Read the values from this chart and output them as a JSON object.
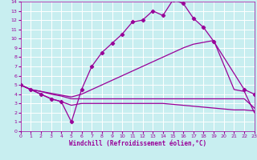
{
  "xlabel": "Windchill (Refroidissement éolien,°C)",
  "bg_color": "#c8eef0",
  "grid_color": "#ffffff",
  "line_color": "#990099",
  "xlim": [
    0,
    23
  ],
  "ylim": [
    0,
    14
  ],
  "xticks": [
    0,
    1,
    2,
    3,
    4,
    5,
    6,
    7,
    8,
    9,
    10,
    11,
    12,
    13,
    14,
    15,
    16,
    17,
    18,
    19,
    20,
    21,
    22,
    23
  ],
  "yticks": [
    0,
    1,
    2,
    3,
    4,
    5,
    6,
    7,
    8,
    9,
    10,
    11,
    12,
    13,
    14
  ],
  "line1_x": [
    0,
    1,
    2,
    3,
    4,
    5,
    6,
    7,
    8,
    9,
    10,
    11,
    12,
    13,
    14,
    15,
    16,
    17,
    18,
    19,
    22,
    23
  ],
  "line1_y": [
    5.0,
    4.5,
    4.0,
    3.5,
    3.2,
    1.0,
    4.5,
    7.0,
    8.5,
    9.5,
    10.5,
    11.8,
    12.0,
    13.0,
    12.5,
    14.2,
    13.8,
    12.2,
    11.2,
    9.7,
    4.5,
    4.0
  ],
  "line2_x": [
    0,
    1,
    2,
    3,
    4,
    5,
    6,
    7,
    8,
    9,
    10,
    11,
    12,
    13,
    14,
    15,
    16,
    17,
    18,
    19,
    21,
    22,
    23
  ],
  "line2_y": [
    5.0,
    4.5,
    4.3,
    4.1,
    3.9,
    3.7,
    4.0,
    4.5,
    5.0,
    5.5,
    6.0,
    6.5,
    7.0,
    7.5,
    8.0,
    8.5,
    9.0,
    9.4,
    9.6,
    9.8,
    4.5,
    4.3,
    2.0
  ],
  "line3_x": [
    0,
    1,
    2,
    3,
    4,
    5,
    6,
    7,
    8,
    9,
    10,
    11,
    12,
    13,
    14,
    15,
    16,
    17,
    18,
    19,
    20,
    21,
    22,
    23
  ],
  "line3_y": [
    5.0,
    4.5,
    4.0,
    3.5,
    3.2,
    2.8,
    3.0,
    3.0,
    3.0,
    3.0,
    3.0,
    3.0,
    3.0,
    3.0,
    3.0,
    2.9,
    2.8,
    2.7,
    2.6,
    2.5,
    2.4,
    2.3,
    2.3,
    2.2
  ],
  "line4_x": [
    0,
    1,
    2,
    3,
    4,
    5,
    6,
    7,
    8,
    9,
    10,
    11,
    12,
    13,
    14,
    15,
    16,
    17,
    18,
    19,
    20,
    21,
    22,
    23
  ],
  "line4_y": [
    5.0,
    4.5,
    4.3,
    4.0,
    3.8,
    3.5,
    3.5,
    3.5,
    3.5,
    3.5,
    3.5,
    3.5,
    3.5,
    3.5,
    3.5,
    3.5,
    3.5,
    3.5,
    3.5,
    3.5,
    3.5,
    3.5,
    3.5,
    2.5
  ]
}
